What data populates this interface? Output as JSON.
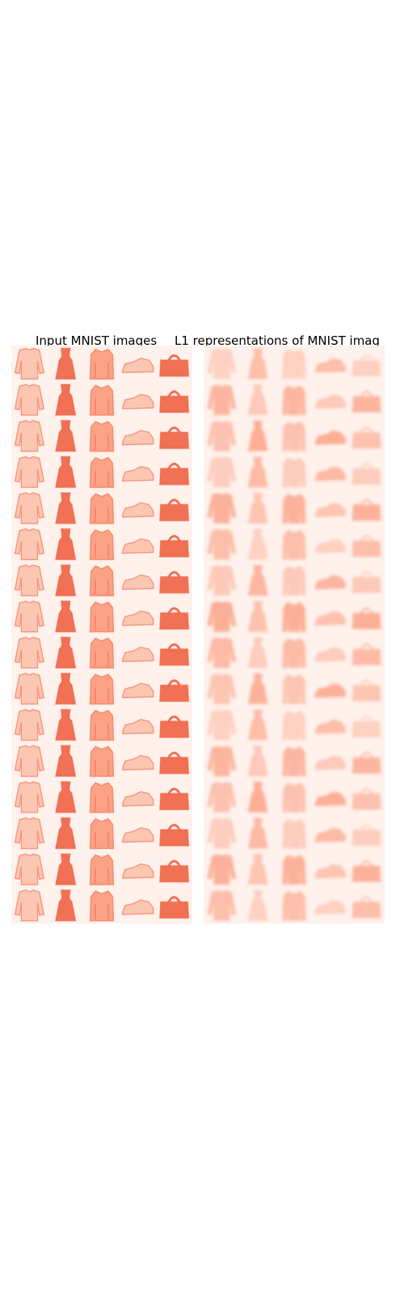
{
  "figure": {
    "left_title": "Input MNIST images",
    "right_title": "L1 representations of MNIST imag",
    "colormap": "Reds",
    "background_color": "#fff1ec",
    "light_color": "#fcc0a8",
    "mid_color": "#fb9473",
    "dark_color": "#ef5b3a",
    "grid": {
      "rows": 16,
      "columns": 5
    },
    "column_items": [
      "top",
      "dress",
      "coat",
      "sneaker",
      "bag"
    ],
    "left_panel": "sharp item images",
    "right_panel": "blurred reconstructions"
  }
}
